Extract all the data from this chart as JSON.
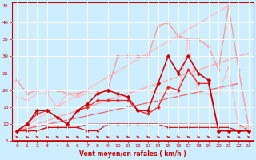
{
  "xlabel": "Vent moyen/en rafales ( km/h )",
  "background_color": "#cceeff",
  "grid_color": "#aadddd",
  "xlim": [
    -0.5,
    23.5
  ],
  "ylim": [
    5,
    46
  ],
  "yticks": [
    5,
    10,
    15,
    20,
    25,
    30,
    35,
    40,
    45
  ],
  "xticks": [
    0,
    1,
    2,
    3,
    4,
    5,
    6,
    7,
    8,
    9,
    10,
    11,
    12,
    13,
    14,
    15,
    16,
    17,
    18,
    19,
    20,
    21,
    22,
    23
  ],
  "series": [
    {
      "name": "light_pink_upper",
      "x": [
        0,
        1,
        2,
        3,
        4,
        5,
        6,
        7,
        8,
        9,
        10,
        11,
        12,
        13,
        14,
        15,
        16,
        17,
        18,
        19,
        20,
        21,
        22,
        23
      ],
      "y": [
        23,
        19,
        20,
        20,
        20,
        19,
        19,
        20,
        20,
        20,
        30,
        30,
        30,
        30,
        39,
        40,
        36,
        35,
        35,
        33,
        26,
        45,
        26,
        9
      ],
      "color": "#ff9999",
      "lw": 1.0,
      "marker": "D",
      "ms": 2.5,
      "zorder": 2
    },
    {
      "name": "light_pink_lower",
      "x": [
        0,
        1,
        2,
        3,
        4,
        5,
        6,
        7,
        8,
        9,
        10,
        11,
        12,
        13,
        14,
        15,
        16,
        17,
        18,
        19,
        20,
        21,
        22,
        23
      ],
      "y": [
        18,
        17,
        19,
        19,
        15,
        19,
        18,
        19,
        19,
        20,
        20,
        20,
        20,
        20,
        19,
        19,
        19,
        34,
        19,
        19,
        19,
        27,
        9,
        9
      ],
      "color": "#ffbbbb",
      "lw": 0.9,
      "marker": "D",
      "ms": 2.0,
      "zorder": 2
    },
    {
      "name": "diagonal_light",
      "x": [
        0,
        23
      ],
      "y": [
        8,
        31
      ],
      "color": "#ffaaaa",
      "lw": 1.0,
      "marker": null,
      "ms": 0,
      "zorder": 1
    },
    {
      "name": "diagonal_light2",
      "x": [
        0,
        21
      ],
      "y": [
        8,
        45
      ],
      "color": "#ffbbbb",
      "lw": 1.0,
      "marker": null,
      "ms": 0,
      "zorder": 1
    },
    {
      "name": "diagonal_med",
      "x": [
        0,
        22
      ],
      "y": [
        8,
        22
      ],
      "color": "#ee6666",
      "lw": 0.9,
      "marker": null,
      "ms": 0,
      "zorder": 1
    },
    {
      "name": "flat_ref",
      "x": [
        0,
        1,
        2,
        3,
        4,
        5,
        6,
        7,
        8,
        9,
        10,
        11,
        12,
        13,
        14,
        15,
        16,
        17,
        18,
        19,
        20,
        21,
        22,
        23
      ],
      "y": [
        8,
        8,
        8,
        9,
        9,
        9,
        9,
        10,
        10,
        10,
        10,
        10,
        10,
        10,
        10,
        10,
        10,
        10,
        10,
        10,
        10,
        10,
        10,
        8
      ],
      "color": "#cc4444",
      "lw": 0.8,
      "marker": null,
      "ms": 0,
      "zorder": 1
    },
    {
      "name": "dark_red_main1",
      "x": [
        0,
        1,
        2,
        3,
        4,
        5,
        6,
        7,
        8,
        9,
        10,
        11,
        12,
        13,
        14,
        15,
        16,
        17,
        18,
        19,
        20,
        21,
        22,
        23
      ],
      "y": [
        8,
        10,
        14,
        14,
        12,
        10,
        14,
        16,
        19,
        20,
        19,
        18,
        14,
        14,
        22,
        30,
        25,
        30,
        25,
        23,
        8,
        8,
        8,
        8
      ],
      "color": "#cc0000",
      "lw": 1.1,
      "marker": "D",
      "ms": 2.5,
      "zorder": 4
    },
    {
      "name": "dark_red_main2",
      "x": [
        0,
        1,
        2,
        3,
        4,
        5,
        6,
        7,
        8,
        9,
        10,
        11,
        12,
        13,
        14,
        15,
        16,
        17,
        18,
        19,
        20,
        21,
        22,
        23
      ],
      "y": [
        8,
        10,
        13,
        14,
        12,
        10,
        14,
        15,
        17,
        17,
        17,
        17,
        14,
        13,
        15,
        21,
        20,
        26,
        22,
        22,
        8,
        8,
        8,
        8
      ],
      "color": "#ee2222",
      "lw": 0.9,
      "marker": "D",
      "ms": 2.0,
      "zorder": 3
    },
    {
      "name": "dark_red_lower",
      "x": [
        0,
        1,
        2,
        3,
        4,
        5,
        6,
        7,
        8,
        9,
        10,
        11,
        12,
        13,
        14,
        15,
        16,
        17,
        18,
        19,
        20,
        21,
        22,
        23
      ],
      "y": [
        8,
        8,
        8,
        9,
        9,
        9,
        9,
        8,
        8,
        10,
        10,
        10,
        10,
        10,
        10,
        9,
        9,
        9,
        9,
        9,
        9,
        9,
        8,
        8
      ],
      "color": "#dd0000",
      "lw": 0.8,
      "marker": "D",
      "ms": 1.5,
      "zorder": 2
    }
  ],
  "wind_arrow_color": "#cc0000",
  "xlabel_color": "#cc0000",
  "xlabel_fontsize": 5.5,
  "tick_fontsize": 4.5,
  "tick_color": "#cc0000",
  "spine_color": "#cc0000"
}
